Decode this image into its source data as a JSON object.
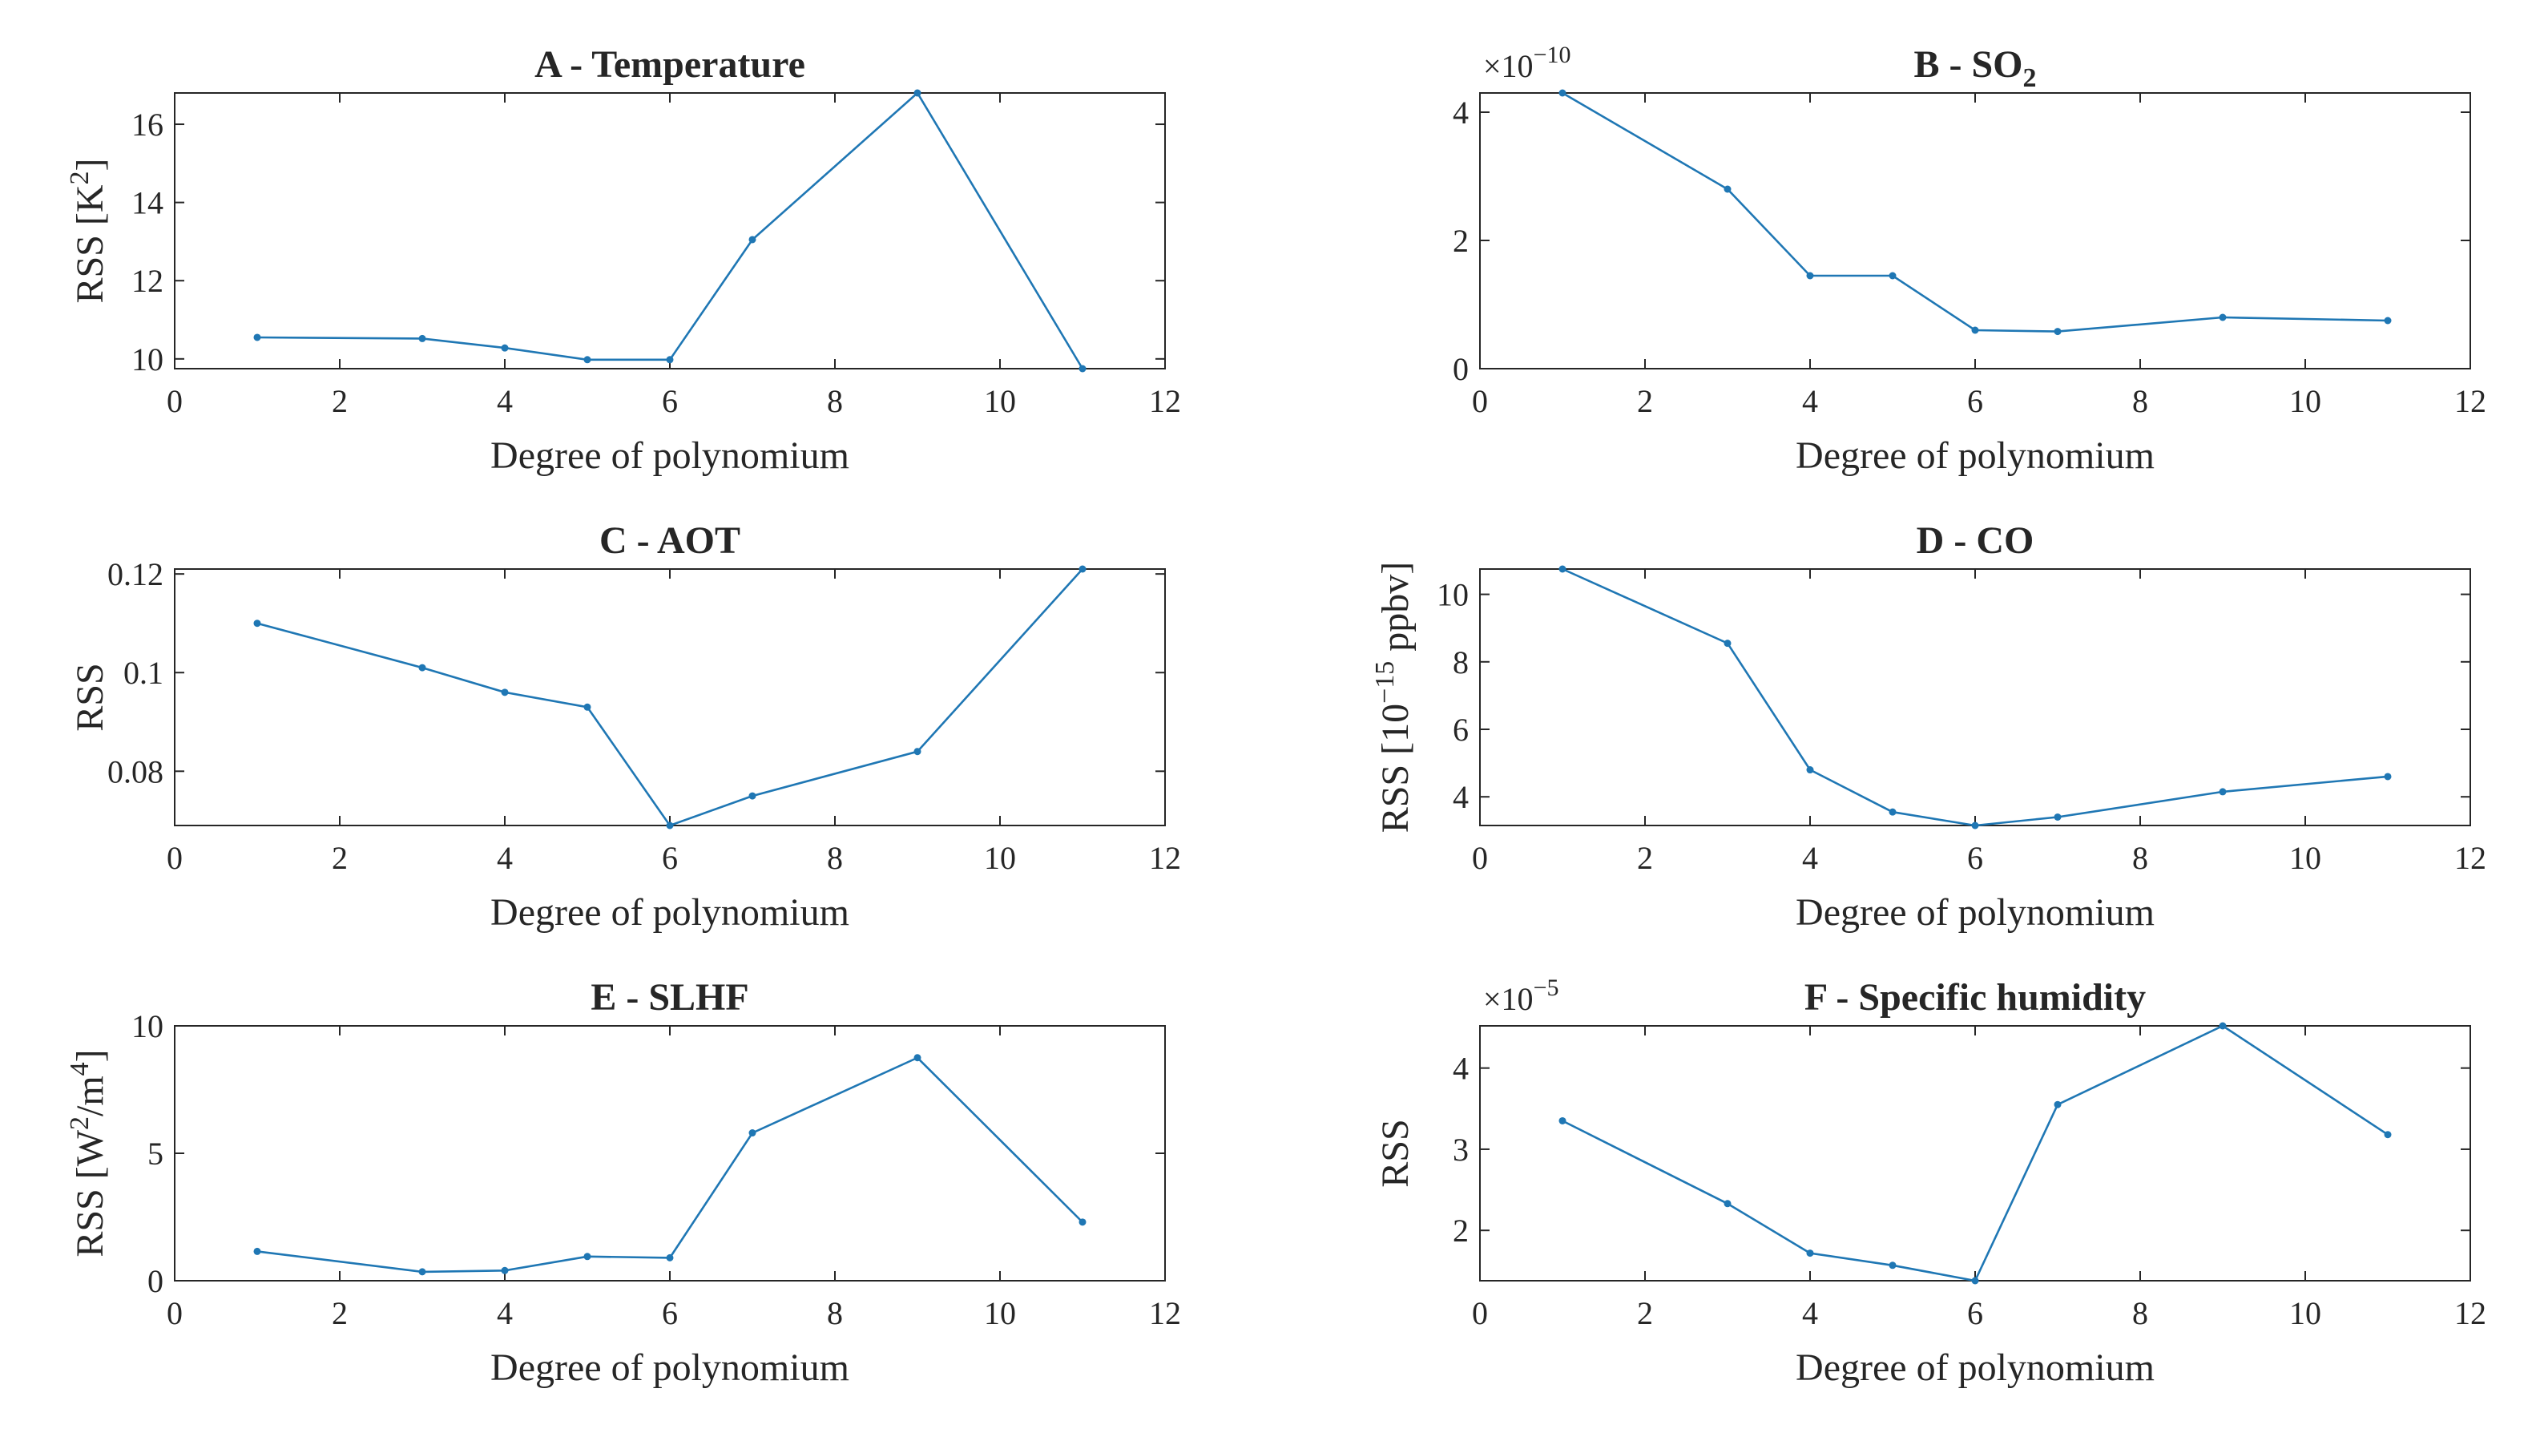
{
  "series_color": "#1f77b4",
  "xlabel": "Degree of polynomium",
  "chart_data": [
    {
      "type": "line",
      "title": "A - Temperature",
      "ylabel": "RSS [K²]",
      "ylabel_base": "RSS [K",
      "ylabel_sup": "2",
      "ylabel_tail": "]",
      "x": [
        1,
        3,
        4,
        5,
        6,
        7,
        9,
        11
      ],
      "values": [
        10.55,
        10.52,
        10.28,
        9.98,
        9.98,
        13.05,
        16.8,
        9.75
      ],
      "xlim": [
        0,
        12
      ],
      "ylim": [
        9.75,
        16.8
      ],
      "xticks": [
        0,
        2,
        4,
        6,
        8,
        10,
        12
      ],
      "yticks": [
        10,
        12,
        14,
        16
      ],
      "ytick_labels": [
        "10",
        "12",
        "14",
        "16"
      ],
      "scale_label": ""
    },
    {
      "type": "line",
      "title": "B - SO",
      "title_sub": "2",
      "ylabel": "",
      "x": [
        1,
        3,
        4,
        5,
        6,
        7,
        9,
        11
      ],
      "values": [
        4.3,
        2.8,
        1.45,
        1.45,
        0.6,
        0.58,
        0.8,
        0.75
      ],
      "xlim": [
        0,
        12
      ],
      "ylim": [
        0,
        4.3
      ],
      "xticks": [
        0,
        2,
        4,
        6,
        8,
        10,
        12
      ],
      "yticks": [
        0,
        2,
        4
      ],
      "ytick_labels": [
        "0",
        "2",
        "4"
      ],
      "scale_label": "×10",
      "scale_exp": "−10"
    },
    {
      "type": "line",
      "title": "C - AOT",
      "ylabel": "RSS",
      "x": [
        1,
        3,
        4,
        5,
        6,
        7,
        9,
        11
      ],
      "values": [
        0.11,
        0.101,
        0.096,
        0.093,
        0.069,
        0.075,
        0.084,
        0.121
      ],
      "xlim": [
        0,
        12
      ],
      "ylim": [
        0.069,
        0.121
      ],
      "xticks": [
        0,
        2,
        4,
        6,
        8,
        10,
        12
      ],
      "yticks": [
        0.08,
        0.1,
        0.12
      ],
      "ytick_labels": [
        "0.08",
        "0.1",
        "0.12"
      ],
      "scale_label": ""
    },
    {
      "type": "line",
      "title": "D - CO",
      "ylabel": "RSS [10⁻¹⁵ ppbv]",
      "ylabel_base": "RSS [10",
      "ylabel_sup": "−15",
      "ylabel_tail": " ppbv]",
      "x": [
        1,
        3,
        4,
        5,
        6,
        7,
        9,
        11
      ],
      "values": [
        10.75,
        8.55,
        4.8,
        3.55,
        3.15,
        3.4,
        4.15,
        4.6
      ],
      "xlim": [
        0,
        12
      ],
      "ylim": [
        3.15,
        10.75
      ],
      "xticks": [
        0,
        2,
        4,
        6,
        8,
        10,
        12
      ],
      "yticks": [
        4,
        6,
        8,
        10
      ],
      "ytick_labels": [
        "4",
        "6",
        "8",
        "10"
      ],
      "scale_label": ""
    },
    {
      "type": "line",
      "title": "E - SLHF",
      "ylabel": "RSS [W²/m⁴]",
      "ylabel_base": "RSS [W",
      "ylabel_sup": "2",
      "ylabel_mid": "/m",
      "ylabel_sup2": "4",
      "ylabel_tail": "]",
      "x": [
        1,
        3,
        4,
        5,
        6,
        7,
        9,
        11
      ],
      "values": [
        1.15,
        0.35,
        0.4,
        0.95,
        0.9,
        5.8,
        8.75,
        2.3
      ],
      "xlim": [
        0,
        12
      ],
      "ylim": [
        0,
        10
      ],
      "xticks": [
        0,
        2,
        4,
        6,
        8,
        10,
        12
      ],
      "yticks": [
        0,
        5,
        10
      ],
      "ytick_labels": [
        "0",
        "5",
        "10"
      ],
      "scale_label": ""
    },
    {
      "type": "line",
      "title": "F - Specific humidity",
      "ylabel": "RSS",
      "x": [
        1,
        3,
        4,
        5,
        6,
        7,
        9,
        11
      ],
      "values": [
        3.35,
        2.33,
        1.72,
        1.57,
        1.38,
        3.55,
        4.52,
        3.18
      ],
      "xlim": [
        0,
        12
      ],
      "ylim": [
        1.38,
        4.52
      ],
      "xticks": [
        0,
        2,
        4,
        6,
        8,
        10,
        12
      ],
      "yticks": [
        2,
        3,
        4
      ],
      "ytick_labels": [
        "2",
        "3",
        "4"
      ],
      "scale_label": "×10",
      "scale_exp": "−5"
    }
  ]
}
